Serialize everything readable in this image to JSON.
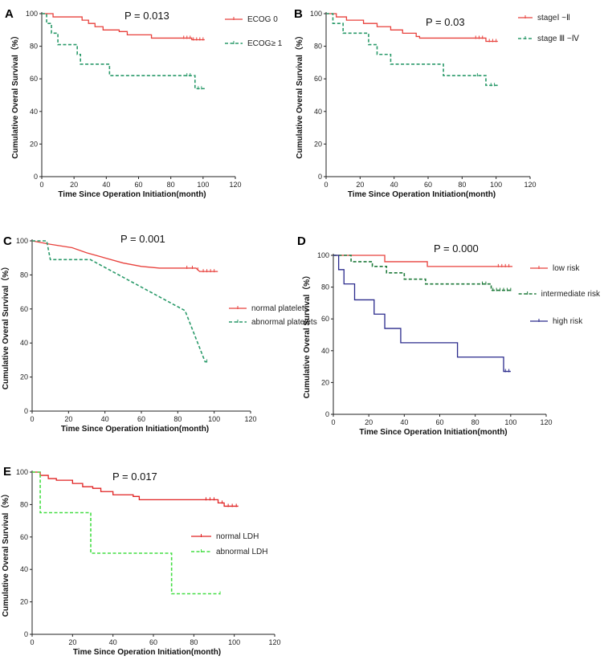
{
  "chart_data": [
    {
      "type": "line",
      "panel": "A",
      "pvalue": "P = 0.013",
      "xlabel": "Time Since Operation Initiation(month)",
      "ylabel": "Cumulative Overal Survival（%）",
      "xlim": [
        0,
        120
      ],
      "ylim": [
        0,
        100
      ],
      "xticks": [
        0,
        20,
        40,
        60,
        80,
        100,
        120
      ],
      "yticks": [
        0,
        20,
        40,
        60,
        80,
        100
      ],
      "legend_position": "top-right",
      "series": [
        {
          "name": "ECOG  0",
          "color": "#e8413c",
          "dashed": false,
          "steps": [
            [
              0,
              100
            ],
            [
              7,
              98
            ],
            [
              25,
              96
            ],
            [
              29,
              94
            ],
            [
              33,
              92
            ],
            [
              38,
              90
            ],
            [
              48,
              89
            ],
            [
              53,
              87
            ],
            [
              68,
              85
            ],
            [
              93,
              84
            ],
            [
              101,
              84
            ]
          ],
          "censors": [
            88,
            90,
            92,
            94,
            96,
            98,
            100
          ]
        },
        {
          "name": "ECOG≥ 1",
          "color": "#2a9a6a",
          "dashed": true,
          "steps": [
            [
              0,
              100
            ],
            [
              3,
              94
            ],
            [
              6,
              88
            ],
            [
              10,
              81
            ],
            [
              22,
              75
            ],
            [
              24,
              69
            ],
            [
              42,
              62
            ],
            [
              93,
              62
            ],
            [
              95,
              54
            ],
            [
              101,
              54
            ]
          ],
          "censors": [
            90,
            92,
            97,
            99
          ]
        }
      ]
    },
    {
      "type": "line",
      "panel": "B",
      "pvalue": "P = 0.03",
      "xlabel": "Time Since Operation Initiation(month)",
      "ylabel": "Cumulative Overal Survival（%）",
      "xlim": [
        0,
        120
      ],
      "ylim": [
        0,
        100
      ],
      "xticks": [
        0,
        20,
        40,
        60,
        80,
        100,
        120
      ],
      "yticks": [
        0,
        20,
        40,
        60,
        80,
        100
      ],
      "legend_position": "top-right",
      "series": [
        {
          "name": "stageⅠ ~Ⅱ",
          "color": "#e8413c",
          "dashed": false,
          "steps": [
            [
              0,
              100
            ],
            [
              6,
              98
            ],
            [
              12,
              96
            ],
            [
              22,
              94
            ],
            [
              30,
              92
            ],
            [
              38,
              90
            ],
            [
              45,
              88
            ],
            [
              53,
              86
            ],
            [
              55,
              85
            ],
            [
              93,
              85
            ],
            [
              94,
              83
            ],
            [
              101,
              83
            ]
          ],
          "censors": [
            88,
            90,
            92,
            96,
            98,
            100
          ]
        },
        {
          "name": "stage Ⅲ ~Ⅳ",
          "color": "#2a9a6a",
          "dashed": true,
          "steps": [
            [
              0,
              100
            ],
            [
              4,
              94
            ],
            [
              10,
              88
            ],
            [
              25,
              81
            ],
            [
              30,
              75
            ],
            [
              38,
              69
            ],
            [
              60,
              69
            ],
            [
              69,
              62
            ],
            [
              92,
              62
            ],
            [
              94,
              56
            ],
            [
              101,
              56
            ]
          ],
          "censors": [
            89,
            97,
            99
          ]
        }
      ]
    },
    {
      "type": "line",
      "panel": "C",
      "pvalue": "P = 0.001",
      "xlabel": "Time Since Operation Initiation(month)",
      "ylabel": "Cumulative Overal Survival（%）",
      "xlim": [
        0,
        120
      ],
      "ylim": [
        0,
        100
      ],
      "xticks": [
        0,
        20,
        40,
        60,
        80,
        100,
        120
      ],
      "yticks": [
        0,
        20,
        40,
        60,
        80,
        100
      ],
      "legend_position": "middle-right",
      "series": [
        {
          "name": "normal platelets",
          "color": "#e8413c",
          "dashed": false,
          "points": [
            [
              0,
              100
            ],
            [
              10,
              98
            ],
            [
              22,
              96
            ],
            [
              30,
              93
            ],
            [
              40,
              90
            ],
            [
              50,
              87
            ],
            [
              60,
              85
            ],
            [
              70,
              84
            ],
            [
              90,
              84
            ],
            [
              92,
              82
            ],
            [
              102,
              82
            ]
          ],
          "censors": [
            85,
            88,
            91,
            94,
            96,
            98,
            100
          ]
        },
        {
          "name": "abnormal platelets",
          "color": "#2a9a6a",
          "dashed": true,
          "points": [
            [
              0,
              100
            ],
            [
              8,
              100
            ],
            [
              10,
              89
            ],
            [
              32,
              89
            ],
            [
              84,
              59
            ],
            [
              95,
              29
            ],
            [
              97,
              29
            ]
          ],
          "censors": [
            96
          ]
        }
      ]
    },
    {
      "type": "line",
      "panel": "D",
      "pvalue": "P = 0.000",
      "xlabel": "Time Since Operation Initiation(month)",
      "ylabel": "Cumulative Overal Survival（%）",
      "xlim": [
        0,
        120
      ],
      "ylim": [
        0,
        100
      ],
      "xticks": [
        0,
        20,
        40,
        60,
        80,
        100,
        120
      ],
      "yticks": [
        0,
        20,
        40,
        60,
        80,
        100
      ],
      "legend_position": "right",
      "series": [
        {
          "name": "low risk",
          "color": "#e8413c",
          "dashed": false,
          "steps": [
            [
              0,
              100
            ],
            [
              28,
              100
            ],
            [
              29,
              96
            ],
            [
              52,
              96
            ],
            [
              53,
              93
            ],
            [
              101,
              93
            ]
          ],
          "censors": [
            93,
            95,
            97,
            99
          ]
        },
        {
          "name": "intermediate risk",
          "color": "#1e7a3a",
          "dashed": true,
          "steps": [
            [
              0,
              100
            ],
            [
              10,
              96
            ],
            [
              22,
              93
            ],
            [
              30,
              89
            ],
            [
              40,
              85
            ],
            [
              52,
              82
            ],
            [
              87,
              82
            ],
            [
              89,
              78
            ],
            [
              101,
              78
            ]
          ],
          "censors": [
            84,
            86,
            90,
            92,
            94,
            96,
            98,
            100
          ]
        },
        {
          "name": "high risk",
          "color": "#2a2a8c",
          "dashed": false,
          "steps": [
            [
              0,
              100
            ],
            [
              3,
              91
            ],
            [
              6,
              82
            ],
            [
              12,
              72
            ],
            [
              23,
              63
            ],
            [
              29,
              54
            ],
            [
              38,
              45
            ],
            [
              69,
              45
            ],
            [
              70,
              36
            ],
            [
              94,
              36
            ],
            [
              96,
              27
            ],
            [
              100,
              27
            ]
          ],
          "censors": [
            97,
            99
          ]
        }
      ]
    },
    {
      "type": "line",
      "panel": "E",
      "pvalue": "P = 0.017",
      "xlabel": "Time Since Operation Initiation(month)",
      "ylabel": "Cumulative Overal Survival（%）",
      "xlim": [
        0,
        120
      ],
      "ylim": [
        0,
        100
      ],
      "xticks": [
        0,
        20,
        40,
        60,
        80,
        100,
        120
      ],
      "yticks": [
        0,
        20,
        40,
        60,
        80,
        100
      ],
      "legend_position": "middle-right",
      "series": [
        {
          "name": "normal LDH",
          "color": "#e02020",
          "dashed": false,
          "steps": [
            [
              0,
              100
            ],
            [
              4,
              98
            ],
            [
              8,
              96
            ],
            [
              12,
              95
            ],
            [
              20,
              93
            ],
            [
              25,
              91
            ],
            [
              30,
              90
            ],
            [
              34,
              88
            ],
            [
              40,
              86
            ],
            [
              50,
              85
            ],
            [
              53,
              83
            ],
            [
              90,
              83
            ],
            [
              92,
              81
            ],
            [
              95,
              79
            ],
            [
              102,
              79
            ]
          ],
          "censors": [
            86,
            88,
            90,
            94,
            97,
            99,
            101
          ]
        },
        {
          "name": "abnormal LDH",
          "color": "#44dd44",
          "dashed": true,
          "steps": [
            [
              0,
              100
            ],
            [
              4,
              75
            ],
            [
              28,
              75
            ],
            [
              29,
              50
            ],
            [
              68,
              50
            ],
            [
              69,
              25
            ],
            [
              93,
              25
            ]
          ],
          "censors": [
            93
          ]
        }
      ]
    }
  ]
}
